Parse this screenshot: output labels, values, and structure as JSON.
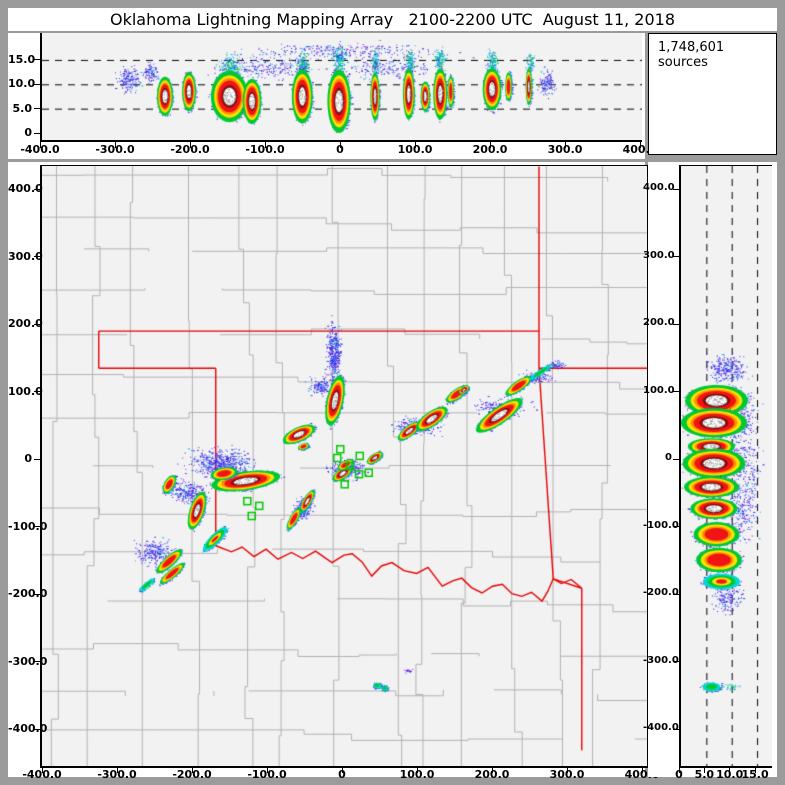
{
  "title": "Oklahoma Lightning Mapping Array   2100-2200 UTC  August 11, 2018",
  "sources_label": "1,748,601 sources",
  "colors": {
    "frame": "#9b9b9b",
    "panel_bg": "#f2f2f2",
    "window_bg": "#ffffff",
    "county": "#b2b2b2",
    "state_border": "#e60000",
    "station": "#00c800",
    "density_scale": [
      "#2a1ee8",
      "#4848ff",
      "#8c28d8",
      "#00b4e6",
      "#00d8d0",
      "#00c832",
      "#ffe000",
      "#ff8c00",
      "#f01414",
      "#8f0a0a",
      "#ffffff"
    ]
  },
  "chart_data": [
    {
      "type": "heatmap",
      "name": "ew-altitude-panel",
      "xlabel_ticks": {
        "vals": [
          -400,
          -300,
          -200,
          -100,
          0,
          100,
          200,
          300,
          400
        ],
        "labels": [
          "-400.0",
          "-300.0",
          "-200.0",
          "-100.0",
          "0",
          "100.0",
          "200.0",
          "300.0",
          "400.0"
        ]
      },
      "ylabel_ticks": {
        "vals": [
          0,
          5,
          10,
          15
        ],
        "labels": [
          "0",
          "5.0",
          "10.0",
          "15.0"
        ]
      },
      "grid_dashed_at": [
        5,
        10,
        15
      ],
      "xlim": [
        -402,
        401
      ],
      "ylim": [
        0,
        20.5
      ],
      "cells": [
        [
          -236,
          7.5,
          7,
          2.6,
          0,
          3
        ],
        [
          -204,
          8.5,
          6,
          2.6,
          0,
          3
        ],
        [
          -150,
          7.5,
          16,
          3.4,
          0,
          3
        ],
        [
          -120,
          6.5,
          8,
          3,
          0,
          3
        ],
        [
          -53,
          7.5,
          9,
          3.6,
          0,
          3
        ],
        [
          -4,
          6.5,
          10,
          4.2,
          0,
          3
        ],
        [
          44,
          7.5,
          4,
          3.2,
          0,
          3
        ],
        [
          89,
          8,
          5,
          3.4,
          0,
          3
        ],
        [
          111,
          7.5,
          4,
          2,
          0,
          3
        ],
        [
          131,
          8,
          6,
          3.4,
          0,
          3
        ],
        [
          145,
          8.5,
          2,
          2.2,
          0,
          2
        ],
        [
          200,
          9,
          8,
          2.8,
          0,
          3
        ],
        [
          222,
          9.5,
          3,
          2,
          0,
          2
        ],
        [
          249,
          9.5,
          2.5,
          2.4,
          0,
          3
        ]
      ],
      "plumes": [
        {
          "x": -285,
          "y": 11,
          "sx": 16,
          "sy": 2.4,
          "n": 160,
          "pal": "b"
        },
        {
          "x": -255,
          "y": 12.5,
          "sx": 10,
          "sy": 2,
          "n": 90,
          "pal": "b"
        },
        {
          "x": -150,
          "y": 13.5,
          "sx": 14,
          "sy": 2.4,
          "n": 220,
          "pal": "c"
        },
        {
          "x": -53,
          "y": 14,
          "sx": 8,
          "sy": 2.4,
          "n": 160,
          "pal": "c"
        },
        {
          "x": -4,
          "y": 15,
          "sx": 8,
          "sy": 2.6,
          "n": 170,
          "pal": "c"
        },
        {
          "x": 44,
          "y": 14.5,
          "sx": 4,
          "sy": 2.4,
          "n": 110,
          "pal": "c"
        },
        {
          "x": 90,
          "y": 14.5,
          "sx": 5,
          "sy": 2.4,
          "n": 110,
          "pal": "c"
        },
        {
          "x": 130,
          "y": 15,
          "sx": 6,
          "sy": 2.4,
          "n": 130,
          "pal": "c"
        },
        {
          "x": 200,
          "y": 14.5,
          "sx": 7,
          "sy": 2.4,
          "n": 140,
          "pal": "c"
        },
        {
          "x": 250,
          "y": 14,
          "sx": 5,
          "sy": 2.4,
          "n": 90,
          "pal": "c"
        },
        {
          "x": 272,
          "y": 10.5,
          "sx": 11,
          "sy": 2.6,
          "n": 120,
          "pal": "b"
        },
        {
          "x": -100,
          "y": 13.5,
          "sx": 60,
          "sy": 2.2,
          "n": 220,
          "pal": "b"
        },
        {
          "x": 60,
          "y": 13.5,
          "sx": 60,
          "sy": 2.2,
          "n": 200,
          "pal": "b"
        },
        {
          "x": 0,
          "y": 16.8,
          "sx": 130,
          "sy": 1.6,
          "n": 260,
          "pal": "b"
        }
      ]
    },
    {
      "type": "heatmap",
      "name": "plan-view-map-panel",
      "xlabel_ticks": {
        "vals": [
          -400,
          -300,
          -200,
          -100,
          0,
          100,
          200,
          300,
          400
        ],
        "labels": [
          "-400.0",
          "-300.0",
          "-200.0",
          "-100.0",
          "0",
          "100.0",
          "200.0",
          "300.0",
          "400.0"
        ]
      },
      "ylabel_ticks": {
        "vals": [
          400,
          300,
          200,
          100,
          0,
          -100,
          -200,
          -300,
          -400
        ],
        "labels": [
          "400.0",
          "300.0",
          "200.0",
          "100.0",
          "0",
          "-100.0",
          "-200.0",
          "-300.0",
          "-400.0"
        ]
      },
      "xlim": [
        -402,
        404
      ],
      "ylim": [
        -453,
        435
      ],
      "state_borders_km": [
        [
          [
            -327,
            191
          ],
          [
            260,
            191
          ]
        ],
        [
          [
            -327,
            191
          ],
          [
            -327,
            136
          ]
        ],
        [
          [
            -327,
            136
          ],
          [
            -171,
            136
          ]
        ],
        [
          [
            -171,
            136
          ],
          [
            -171,
            -127
          ]
        ],
        [
          [
            260,
            435
          ],
          [
            260,
            136
          ]
        ],
        [
          [
            260,
            136
          ],
          [
            410,
            136
          ]
        ],
        [
          [
            260,
            136
          ],
          [
            279,
            -176
          ]
        ],
        [
          [
            279,
            -176
          ],
          [
            317,
            -190
          ]
        ],
        [
          [
            317,
            -190
          ],
          [
            317,
            -430
          ]
        ]
      ],
      "red_river_km": [
        [
          -171,
          -127
        ],
        [
          -150,
          -136
        ],
        [
          -136,
          -129
        ],
        [
          -120,
          -143
        ],
        [
          -104,
          -132
        ],
        [
          -88,
          -147
        ],
        [
          -70,
          -137
        ],
        [
          -55,
          -146
        ],
        [
          -38,
          -135
        ],
        [
          -16,
          -152
        ],
        [
          0,
          -141
        ],
        [
          11,
          -139
        ],
        [
          24,
          -151
        ],
        [
          37,
          -172
        ],
        [
          50,
          -157
        ],
        [
          64,
          -152
        ],
        [
          80,
          -164
        ],
        [
          97,
          -168
        ],
        [
          112,
          -159
        ],
        [
          131,
          -187
        ],
        [
          145,
          -179
        ],
        [
          157,
          -175
        ],
        [
          170,
          -189
        ],
        [
          184,
          -197
        ],
        [
          198,
          -187
        ],
        [
          211,
          -184
        ],
        [
          224,
          -198
        ],
        [
          237,
          -202
        ],
        [
          250,
          -196
        ],
        [
          264,
          -209
        ],
        [
          272,
          -194
        ],
        [
          279,
          -176
        ],
        [
          290,
          -183
        ],
        [
          303,
          -177
        ],
        [
          317,
          -190
        ]
      ],
      "stations_km": [
        [
          -5,
          16
        ],
        [
          -9,
          3
        ],
        [
          21,
          6
        ],
        [
          8,
          -9
        ],
        [
          20,
          -21
        ],
        [
          33,
          -19
        ],
        [
          1,
          -36
        ],
        [
          -129,
          -61
        ],
        [
          -113,
          -68
        ],
        [
          -123,
          -83
        ]
      ],
      "cells": [
        [
          -12,
          88,
          22,
          8,
          78,
          3
        ],
        [
          -60,
          38,
          15,
          7,
          25,
          3
        ],
        [
          -54,
          20,
          5,
          3,
          20,
          2
        ],
        [
          -2,
          -20,
          10,
          5,
          35,
          3
        ],
        [
          2,
          -7,
          8,
          4,
          30,
          2
        ],
        [
          41,
          3,
          8,
          4,
          35,
          3
        ],
        [
          87,
          43,
          12,
          5,
          38,
          3
        ],
        [
          117,
          61,
          16,
          7,
          35,
          3
        ],
        [
          151,
          98,
          12,
          5,
          35,
          2
        ],
        [
          160,
          104,
          5,
          3,
          35,
          3
        ],
        [
          207,
          66,
          24,
          8,
          35,
          3
        ],
        [
          233,
          110,
          14,
          5,
          35,
          2
        ],
        [
          262,
          130,
          14,
          3,
          35,
          0
        ],
        [
          -131,
          -31,
          30,
          9,
          8,
          3
        ],
        [
          -160,
          -20,
          12,
          6,
          10,
          2
        ],
        [
          -196,
          -75,
          17,
          7,
          72,
          3
        ],
        [
          -233,
          -36,
          9,
          5,
          60,
          2
        ],
        [
          -172,
          -117,
          15,
          5,
          45,
          1
        ],
        [
          -233,
          -150,
          15,
          5,
          42,
          2
        ],
        [
          -229,
          -168,
          14,
          4,
          40,
          2
        ],
        [
          -263,
          -185,
          10,
          3,
          40,
          0
        ],
        [
          -49,
          -61,
          11,
          4,
          60,
          3
        ],
        [
          -67,
          -87,
          11,
          4,
          60,
          2
        ],
        [
          44,
          -334,
          4,
          3,
          0,
          0
        ],
        [
          54,
          -338,
          3,
          2,
          0,
          0
        ]
      ],
      "plumes": [
        {
          "x": -14,
          "y": 158,
          "sx": 9,
          "sy": 40,
          "n": 420,
          "pal": "b"
        },
        {
          "x": -30,
          "y": 110,
          "sx": 17,
          "sy": 13,
          "n": 160,
          "pal": "b"
        },
        {
          "x": -165,
          "y": -4,
          "sx": 38,
          "sy": 20,
          "n": 560,
          "pal": "b"
        },
        {
          "x": -140,
          "y": -26,
          "sx": 28,
          "sy": 12,
          "n": 220,
          "pal": "c"
        },
        {
          "x": -208,
          "y": -48,
          "sx": 24,
          "sy": 17,
          "n": 230,
          "pal": "b"
        },
        {
          "x": -252,
          "y": -138,
          "sx": 24,
          "sy": 21,
          "n": 260,
          "pal": "b"
        },
        {
          "x": 2,
          "y": -13,
          "sx": 21,
          "sy": 13,
          "n": 300,
          "pal": "b"
        },
        {
          "x": -55,
          "y": -72,
          "sx": 12,
          "sy": 15,
          "n": 150,
          "pal": "b"
        },
        {
          "x": 95,
          "y": 50,
          "sx": 30,
          "sy": 12,
          "n": 190,
          "pal": "b"
        },
        {
          "x": 210,
          "y": 77,
          "sx": 34,
          "sy": 13,
          "n": 200,
          "pal": "b"
        },
        {
          "x": 255,
          "y": 122,
          "sx": 20,
          "sy": 8,
          "n": 110,
          "pal": "b"
        },
        {
          "x": 283,
          "y": 142,
          "sx": 12,
          "sy": 6,
          "n": 55,
          "pal": "b"
        },
        {
          "x": 85,
          "y": -312,
          "sx": 7,
          "sy": 3,
          "n": 16,
          "pal": "p"
        }
      ]
    },
    {
      "type": "heatmap",
      "name": "altitude-ns-panel",
      "xlabel_ticks": {
        "vals": [
          0,
          5,
          10,
          15
        ],
        "labels": [
          "0",
          "5.0",
          "10.0",
          "15.0"
        ]
      },
      "ylabel_ticks": {
        "vals": [
          400,
          300,
          200,
          100,
          0,
          -100,
          -200,
          -300,
          -400
        ],
        "labels": [
          "400.0",
          "300.0",
          "200.0",
          "100.0",
          "0",
          "-100.0",
          "-200.0",
          "-300.0",
          "-400.0"
        ]
      },
      "grid_dashed_at": [
        5,
        10,
        15
      ],
      "xlim": [
        0,
        18
      ],
      "ylim": [
        -453,
        435
      ],
      "cells": [
        [
          7,
          88,
          4,
          15,
          0,
          3
        ],
        [
          6.5,
          55,
          4.2,
          14,
          0,
          3
        ],
        [
          6,
          20,
          3,
          8,
          0,
          3
        ],
        [
          6.5,
          -5,
          4,
          14,
          0,
          3
        ],
        [
          6,
          -40,
          3.5,
          10,
          0,
          3
        ],
        [
          6.5,
          -72,
          3,
          10,
          0,
          3
        ],
        [
          7,
          -110,
          3,
          12,
          0,
          2
        ],
        [
          7.5,
          -148,
          3,
          12,
          0,
          2
        ],
        [
          8,
          -180,
          2.5,
          8,
          0,
          1
        ],
        [
          6,
          -336,
          1.4,
          5,
          0,
          0
        ]
      ],
      "plumes": [
        {
          "x": 9,
          "y": 135,
          "sx": 3.5,
          "sy": 20,
          "n": 260,
          "pal": "b"
        },
        {
          "x": 11,
          "y": 60,
          "sx": 3,
          "sy": 45,
          "n": 190,
          "pal": "b"
        },
        {
          "x": 12,
          "y": -60,
          "sx": 3,
          "sy": 60,
          "n": 210,
          "pal": "b"
        },
        {
          "x": 9,
          "y": -205,
          "sx": 3,
          "sy": 18,
          "n": 150,
          "pal": "b"
        },
        {
          "x": 13,
          "y": -10,
          "sx": 2.5,
          "sy": 100,
          "n": 150,
          "pal": "b"
        },
        {
          "x": 10,
          "y": -336,
          "sx": 2,
          "sy": 5,
          "n": 30,
          "pal": "c"
        }
      ]
    }
  ]
}
